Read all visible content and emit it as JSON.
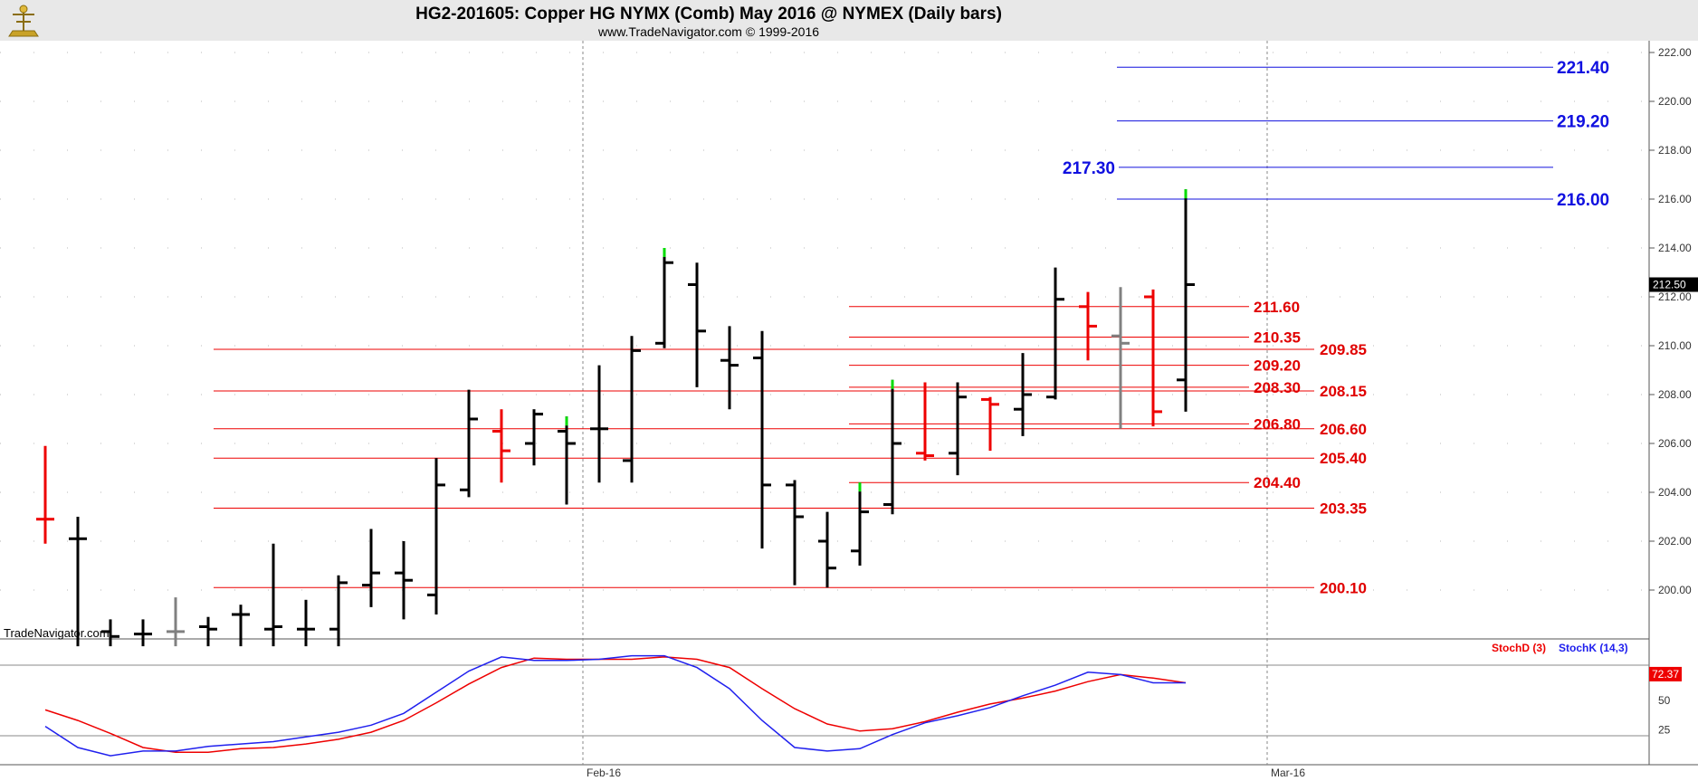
{
  "header": {
    "title": "HG2-201605:  Copper HG NYMX (Comb) May 2016 @ NYMEX  (Daily bars)",
    "subtitle": "www.TradeNavigator.com © 1999-2016"
  },
  "watermark": "TradeNavigator.com",
  "colors": {
    "up": "#00dd00",
    "down": "#ee0000",
    "neutral": "#000000",
    "flat": "#808080",
    "support": "#ee0000",
    "target": "#1010dd",
    "stochD": "#ee0000",
    "stochK": "#2020ee"
  },
  "chart_data": [
    {
      "type": "ohlc",
      "title": "HG2-201605:  Copper HG NYMX (Comb) May 2016 @ NYMEX  (Daily bars)",
      "ylim": [
        198,
        223
      ],
      "y_ticks": [
        "200.00",
        "202.00",
        "204.00",
        "206.00",
        "208.00",
        "210.00",
        "212.00",
        "214.00",
        "216.00",
        "218.00",
        "220.00",
        "222.00"
      ],
      "x_ticks": [
        {
          "index": 16.5,
          "label": "Feb-16"
        },
        {
          "index": 37.5,
          "label": "Mar-16"
        }
      ],
      "last_price": "212.50",
      "bars": [
        {
          "o": 202.9,
          "h": 205.9,
          "l": 201.9,
          "c": 202.9,
          "col": "down"
        },
        {
          "o": 202.1,
          "h": 203.0,
          "l": 197.0,
          "c": 202.1,
          "col": "neutral"
        },
        {
          "o": 198.3,
          "h": 198.8,
          "l": 197.0,
          "c": 198.1,
          "col": "neutral"
        },
        {
          "o": 198.2,
          "h": 198.8,
          "l": 197.3,
          "c": 198.2,
          "col": "neutral"
        },
        {
          "o": 198.3,
          "h": 199.7,
          "l": 197.5,
          "c": 198.3,
          "col": "flat"
        },
        {
          "o": 198.5,
          "h": 198.9,
          "l": 197.5,
          "c": 198.4,
          "col": "neutral"
        },
        {
          "o": 199.0,
          "h": 199.4,
          "l": 197.5,
          "c": 199.0,
          "col": "neutral"
        },
        {
          "o": 198.4,
          "h": 201.9,
          "l": 197.6,
          "c": 198.5,
          "col": "neutral"
        },
        {
          "o": 198.4,
          "h": 199.6,
          "l": 197.6,
          "c": 198.4,
          "col": "neutral"
        },
        {
          "o": 198.4,
          "h": 200.6,
          "l": 197.6,
          "c": 200.3,
          "col": "neutral"
        },
        {
          "o": 200.2,
          "h": 202.5,
          "l": 199.3,
          "c": 200.7,
          "col": "neutral"
        },
        {
          "o": 200.7,
          "h": 202.0,
          "l": 198.8,
          "c": 200.4,
          "col": "neutral"
        },
        {
          "o": 199.8,
          "h": 205.4,
          "l": 199.0,
          "c": 204.3,
          "col": "neutral"
        },
        {
          "o": 204.1,
          "h": 208.2,
          "l": 203.8,
          "c": 207.0,
          "col": "neutral"
        },
        {
          "o": 206.5,
          "h": 207.4,
          "l": 204.4,
          "c": 205.7,
          "col": "down"
        },
        {
          "o": 206.0,
          "h": 207.4,
          "l": 205.1,
          "c": 207.2,
          "col": "neutral"
        },
        {
          "o": 206.5,
          "h": 207.1,
          "l": 203.5,
          "c": 206.0,
          "col": "up"
        },
        {
          "o": 206.6,
          "h": 209.2,
          "l": 204.4,
          "c": 206.6,
          "col": "neutral"
        },
        {
          "o": 205.3,
          "h": 210.4,
          "l": 204.4,
          "c": 209.8,
          "col": "neutral"
        },
        {
          "o": 210.1,
          "h": 214.0,
          "l": 209.9,
          "c": 213.4,
          "col": "up"
        },
        {
          "o": 212.5,
          "h": 213.4,
          "l": 208.3,
          "c": 210.6,
          "col": "neutral"
        },
        {
          "o": 209.4,
          "h": 210.8,
          "l": 207.4,
          "c": 209.2,
          "col": "neutral"
        },
        {
          "o": 209.5,
          "h": 210.6,
          "l": 201.7,
          "c": 204.3,
          "col": "neutral"
        },
        {
          "o": 204.3,
          "h": 204.5,
          "l": 200.2,
          "c": 203.0,
          "col": "neutral"
        },
        {
          "o": 202.0,
          "h": 203.2,
          "l": 200.1,
          "c": 200.9,
          "col": "neutral"
        },
        {
          "o": 201.6,
          "h": 204.4,
          "l": 201.0,
          "c": 203.2,
          "col": "up"
        },
        {
          "o": 203.5,
          "h": 208.6,
          "l": 203.1,
          "c": 206.0,
          "col": "up"
        },
        {
          "o": 205.6,
          "h": 208.5,
          "l": 205.3,
          "c": 205.5,
          "col": "down"
        },
        {
          "o": 205.6,
          "h": 208.5,
          "l": 204.7,
          "c": 207.9,
          "col": "neutral"
        },
        {
          "o": 207.8,
          "h": 207.9,
          "l": 205.7,
          "c": 207.6,
          "col": "down"
        },
        {
          "o": 207.4,
          "h": 209.7,
          "l": 206.3,
          "c": 208.0,
          "col": "neutral"
        },
        {
          "o": 207.9,
          "h": 213.2,
          "l": 207.8,
          "c": 211.9,
          "col": "neutral"
        },
        {
          "o": 211.6,
          "h": 212.2,
          "l": 209.4,
          "c": 210.8,
          "col": "down"
        },
        {
          "o": 210.4,
          "h": 212.4,
          "l": 206.6,
          "c": 210.1,
          "col": "flat"
        },
        {
          "o": 212.0,
          "h": 212.3,
          "l": 206.7,
          "c": 207.3,
          "col": "down"
        },
        {
          "o": 208.6,
          "h": 216.4,
          "l": 207.3,
          "c": 212.5,
          "col": "up"
        }
      ],
      "levels_red_lower": [
        {
          "value": 200.1,
          "label": "200.10"
        },
        {
          "value": 203.35,
          "label": "203.35"
        },
        {
          "value": 205.4,
          "label": "205.40"
        },
        {
          "value": 206.6,
          "label": "206.60"
        },
        {
          "value": 208.15,
          "label": "208.15"
        },
        {
          "value": 209.85,
          "label": "209.85"
        }
      ],
      "levels_red_upper": [
        {
          "value": 204.4,
          "label": "204.40"
        },
        {
          "value": 206.8,
          "label": "206.80"
        },
        {
          "value": 208.3,
          "label": "208.30"
        },
        {
          "value": 209.2,
          "label": "209.20"
        },
        {
          "value": 210.35,
          "label": "210.35"
        },
        {
          "value": 211.6,
          "label": "211.60"
        }
      ],
      "levels_blue": [
        {
          "value": 216.0,
          "label": "216.00"
        },
        {
          "value": 217.3,
          "label": "217.30"
        },
        {
          "value": 219.2,
          "label": "219.20"
        },
        {
          "value": 221.4,
          "label": "221.40"
        }
      ]
    },
    {
      "type": "line",
      "ylim": [
        0,
        100
      ],
      "y_ticks": [
        "25",
        "50"
      ],
      "ref_lines": [
        20,
        80
      ],
      "last_value": "72.37",
      "legend": [
        "StochD (3)",
        "StochK (14,3)"
      ],
      "x": [
        0,
        1,
        2,
        3,
        4,
        5,
        6,
        7,
        8,
        9,
        10,
        11,
        12,
        13,
        14,
        15,
        16,
        17,
        18,
        19,
        20,
        21,
        22,
        23,
        24,
        25,
        26,
        27,
        28,
        29,
        30,
        31,
        32,
        33,
        34,
        35
      ],
      "series": [
        {
          "name": "StochD (3)",
          "color": "stochD",
          "values": [
            42,
            33,
            22,
            10,
            6,
            6,
            9,
            10,
            13,
            17,
            23,
            33,
            48,
            64,
            78,
            86,
            85,
            85,
            85,
            87,
            85,
            78,
            60,
            43,
            30,
            24,
            26,
            32,
            40,
            47,
            52,
            58,
            66,
            72,
            69,
            65
          ]
        },
        {
          "name": "StochK (14,3)",
          "color": "stochK",
          "values": [
            28,
            10,
            3,
            7,
            7,
            11,
            13,
            15,
            19,
            23,
            29,
            39,
            57,
            75,
            87,
            84,
            84,
            85,
            88,
            88,
            78,
            60,
            33,
            10,
            7,
            9,
            21,
            31,
            37,
            44,
            54,
            63,
            74,
            72,
            65,
            65
          ]
        }
      ]
    }
  ]
}
